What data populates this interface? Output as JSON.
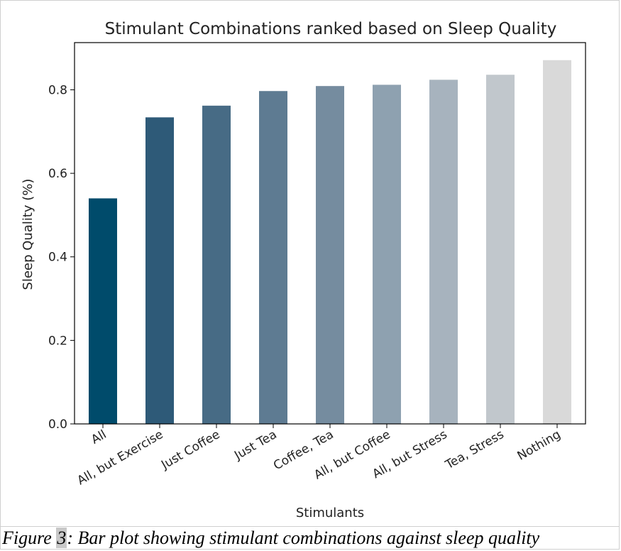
{
  "caption": {
    "prefix": "Figure ",
    "number": "3",
    "text": ": Bar plot showing stimulant combinations against sleep quality"
  },
  "chart_data": {
    "type": "bar",
    "title": "Stimulant Combinations ranked based on Sleep Quality",
    "xlabel": "Stimulants",
    "ylabel": "Sleep Quality (%)",
    "ylim": [
      0,
      0.913
    ],
    "yticks": [
      0.0,
      0.2,
      0.4,
      0.6,
      0.8
    ],
    "ytick_labels": [
      "0.0",
      "0.2",
      "0.4",
      "0.6",
      "0.8"
    ],
    "grid": false,
    "categories": [
      "All",
      "All, but Exercise",
      "Just Coffee",
      "Just Tea",
      "Coffee, Tea",
      "All, but Coffee",
      "All, but Stress",
      "Tea, Stress",
      "Nothing"
    ],
    "values": [
      0.54,
      0.734,
      0.762,
      0.797,
      0.809,
      0.812,
      0.824,
      0.836,
      0.871
    ],
    "colors": [
      "#004b6b",
      "#2e5a78",
      "#476b85",
      "#5e7b92",
      "#758c9f",
      "#8ea1b0",
      "#a7b3be",
      "#c1c7cc",
      "#d9d9d9"
    ]
  }
}
